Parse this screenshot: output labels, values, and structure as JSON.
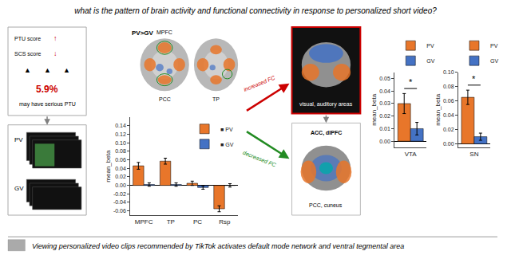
{
  "chart_data": [
    {
      "type": "bar",
      "title": "what is the pattern of brain activity and functional connectivity in response to personalized short video?",
      "subtitle": "Viewing personalized video clips recommended by TikTok activates default mode network and ventral tegmental area",
      "categories": [
        "MPFC",
        "TP",
        "PC",
        "Rsp"
      ],
      "series": [
        {
          "name": "■ PV",
          "color": "#E8762A",
          "values": [
            0.046,
            0.057,
            0.005,
            -0.055
          ],
          "errors": [
            0.008,
            0.007,
            0.005,
            0.007
          ]
        },
        {
          "name": "■ GV",
          "color": "#4472C4",
          "values": [
            0.002,
            0.002,
            -0.005,
            0.0
          ],
          "errors": [
            0.004,
            0.004,
            0.004,
            0.004
          ]
        }
      ],
      "ylabel": "mean_beta",
      "ylim": [
        -0.07,
        0.16
      ],
      "yticks": [
        -0.06,
        -0.04,
        -0.02,
        {
          "value": 0,
          "label": "0.00"
        },
        0.02,
        0.04,
        0.06,
        0.08,
        {
          "value": 0.1,
          "label": "0.10"
        },
        0.12,
        0.14
      ],
      "grid": false,
      "legend": "upper right",
      "annotations": [
        {
          "text": "PTU score"
        },
        {
          "text": "↑",
          "color": "#CC0000"
        },
        {
          "text": "SCS score"
        },
        {
          "text": "↓",
          "color": "#CC0000"
        },
        {
          "text": "▲"
        },
        {
          "text": "▲"
        },
        {
          "text": "▲"
        },
        {
          "text": "5.9%",
          "color": "#CC0000"
        },
        {
          "text": "may have serious PTU"
        },
        {
          "text": "PV"
        },
        {
          "text": "GV"
        },
        {
          "text": "PV>GV"
        },
        {
          "text": "MPFC"
        },
        {
          "text": "PCC"
        },
        {
          "text": "TP"
        },
        {
          "text": "increased FC",
          "color": "#CC0000"
        },
        {
          "text": "decreased FC",
          "color": "#228B22"
        },
        {
          "text": "visual, auditory areas",
          "color": "#FFFFFF"
        },
        {
          "text": "ACC, dlPFC"
        },
        {
          "text": "PCC, cuneus"
        }
      ]
    },
    {
      "type": "bar",
      "categories": [
        "VTA"
      ],
      "series": [
        {
          "name": "PV",
          "color": "#E8762A",
          "values": [
            0.03
          ],
          "errors": [
            0.008
          ]
        },
        {
          "name": "GV",
          "color": "#4472C4",
          "values": [
            0.01
          ],
          "errors": [
            0.005
          ]
        }
      ],
      "ylabel": "mean_beta",
      "ylim": [
        -0.005,
        0.055
      ],
      "yticks": [
        {
          "value": 0,
          "label": "0.00"
        },
        0.01,
        0.02,
        0.03,
        0.04,
        0.05
      ],
      "grid": false,
      "legend": "upper left",
      "annotations": [
        {
          "text": "*",
          "y": 0.042
        }
      ]
    },
    {
      "type": "bar",
      "categories": [
        "SN"
      ],
      "series": [
        {
          "name": "PV",
          "color": "#E8762A",
          "values": [
            0.065
          ],
          "errors": [
            0.01
          ]
        },
        {
          "name": "GV",
          "color": "#4472C4",
          "values": [
            0.01
          ],
          "errors": [
            0.005
          ]
        }
      ],
      "ylabel": "mean_beta",
      "ylim": [
        -0.005,
        0.1
      ],
      "yticks": [
        {
          "value": 0,
          "label": "0.00"
        },
        0.02,
        0.04,
        0.06,
        0.08,
        {
          "value": 0.1,
          "label": "0.10"
        }
      ],
      "grid": false,
      "legend": "upper left",
      "annotations": [
        {
          "text": "*",
          "y": 0.082
        }
      ]
    }
  ]
}
